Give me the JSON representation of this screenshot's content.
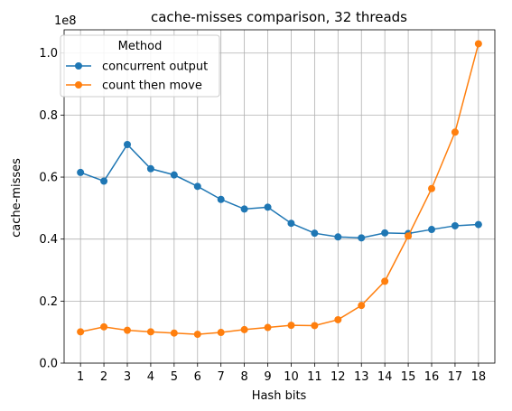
{
  "chart_data": {
    "type": "line",
    "title": "cache-misses comparison, 32 threads",
    "xlabel": "Hash bits",
    "ylabel": "cache-misses",
    "y_scale_label": "1e8",
    "x": [
      1,
      2,
      3,
      4,
      5,
      6,
      7,
      8,
      9,
      10,
      11,
      12,
      13,
      14,
      15,
      16,
      17,
      18
    ],
    "x_ticks": [
      "1",
      "2",
      "3",
      "4",
      "5",
      "6",
      "7",
      "8",
      "9",
      "10",
      "11",
      "12",
      "13",
      "14",
      "15",
      "16",
      "17",
      "18"
    ],
    "xlim": [
      0.3,
      18.7
    ],
    "ylim": [
      0,
      1.075
    ],
    "y_ticks": [
      0.0,
      0.2,
      0.4,
      0.6,
      0.8,
      1.0
    ],
    "y_tick_labels": [
      "0.0",
      "0.2",
      "0.4",
      "0.6",
      "0.8",
      "1.0"
    ],
    "grid": true,
    "legend": {
      "title": "Method",
      "placement": "top-left"
    },
    "series": [
      {
        "name": "concurrent output",
        "color": "#1f77b4",
        "values": [
          0.615,
          0.587,
          0.705,
          0.627,
          0.607,
          0.57,
          0.528,
          0.497,
          0.503,
          0.451,
          0.419,
          0.407,
          0.404,
          0.42,
          0.418,
          0.431,
          0.443,
          0.447
        ]
      },
      {
        "name": "count then move",
        "color": "#ff7f0e",
        "values": [
          0.101,
          0.117,
          0.106,
          0.101,
          0.097,
          0.093,
          0.099,
          0.108,
          0.115,
          0.122,
          0.121,
          0.14,
          0.186,
          0.264,
          0.41,
          0.563,
          0.745,
          1.03
        ]
      }
    ]
  }
}
